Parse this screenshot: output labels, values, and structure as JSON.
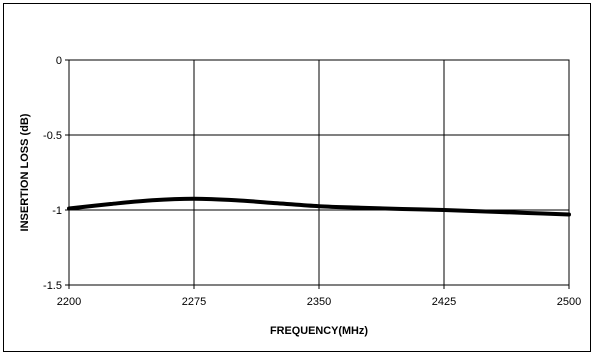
{
  "chart_data": {
    "type": "line",
    "title": "",
    "xlabel": "FREQUENCY(MHz)",
    "ylabel": "INSERTION LOSS (dB)",
    "xlim": [
      2200,
      2500
    ],
    "ylim": [
      -1.5,
      0
    ],
    "x_ticks": [
      2200,
      2275,
      2350,
      2425,
      2500
    ],
    "y_ticks": [
      0,
      -0.5,
      -1,
      -1.5
    ],
    "grid": true,
    "legend": "none",
    "series": [
      {
        "color": "#000000",
        "x": [
          2200,
          2225,
          2250,
          2275,
          2300,
          2325,
          2350,
          2375,
          2400,
          2425,
          2450,
          2475,
          2500
        ],
        "y": [
          -0.99,
          -0.96,
          -0.935,
          -0.925,
          -0.935,
          -0.955,
          -0.975,
          -0.985,
          -0.993,
          -1.0,
          -1.01,
          -1.02,
          -1.03
        ]
      }
    ]
  }
}
